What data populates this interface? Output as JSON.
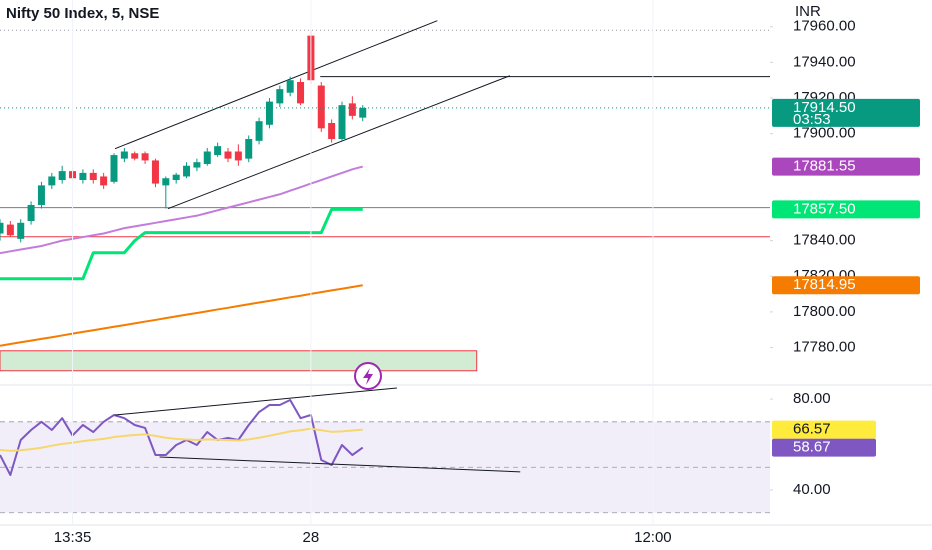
{
  "chart_data": [
    {
      "type": "candlestick",
      "title": "Nifty 50 Index, 5, NSE",
      "currency": "INR",
      "xlim": [
        0,
        74.3
      ],
      "ylim": [
        17759,
        17975
      ],
      "yticks": [
        {
          "value": 17780,
          "label": "17780.00"
        },
        {
          "value": 17800,
          "label": "17800.00"
        },
        {
          "value": 17820,
          "label": "17820.00"
        },
        {
          "value": 17840,
          "label": "17840.00"
        },
        {
          "value": 17900,
          "label": "17900.00"
        },
        {
          "value": 17920,
          "label": "17920.00"
        },
        {
          "value": 17940,
          "label": "17940.00"
        },
        {
          "value": 17960,
          "label": "17960.00"
        }
      ],
      "grid": false,
      "candles": {
        "open": [
          17844,
          17849,
          17841,
          17851,
          17860,
          17871,
          17874,
          17879,
          17874,
          17878,
          17876,
          17873,
          17886,
          17889,
          17889,
          17885,
          17871,
          17874,
          17876,
          17881,
          17883,
          17888,
          17890,
          17890,
          17886,
          17896,
          17905,
          17917,
          17923,
          17929,
          17955,
          17927,
          17906,
          17897,
          17917,
          17909
        ],
        "high": [
          17852,
          17851,
          17852,
          17862,
          17873,
          17878,
          17882,
          17881,
          17880,
          17880,
          17878,
          17889,
          17892,
          17890,
          17890,
          17886,
          17876,
          17878,
          17884,
          17886,
          17892,
          17895,
          17892,
          17894,
          17899,
          17909,
          17920,
          17927,
          17932,
          17931,
          17958,
          17929,
          17908,
          17918,
          17921,
          17916
        ],
        "low": [
          17840,
          17842,
          17839,
          17849,
          17858,
          17869,
          17872,
          17873,
          17872,
          17872,
          17869,
          17872,
          17884,
          17885,
          17883,
          17870,
          17858,
          17872,
          17875,
          17879,
          17882,
          17887,
          17884,
          17882,
          17884,
          17894,
          17903,
          17915,
          17921,
          17916,
          17928,
          17901,
          17895,
          17896,
          17908,
          17907
        ],
        "close": [
          17850,
          17843,
          17850,
          17860,
          17871,
          17876,
          17879,
          17875,
          17878,
          17874,
          17871,
          17888,
          17890,
          17886,
          17885,
          17872,
          17875,
          17877,
          17882,
          17884,
          17890,
          17893,
          17886,
          17885,
          17897,
          17907,
          17918,
          17925,
          17930,
          17917,
          17930,
          17903,
          17897,
          17916,
          17910,
          17914.5
        ],
        "up_color": "#089981",
        "down_color": "#f23645",
        "last_label": "17914.50",
        "countdown": "03:53"
      },
      "series": [
        {
          "color": "#c27ddb",
          "label_color": "#ab47bc",
          "last_label": "17881.55",
          "values": [
            17833,
            17834,
            17835,
            17836,
            17837,
            17838.5,
            17840,
            17841,
            17842,
            17843,
            17844,
            17845.5,
            17847,
            17848,
            17849,
            17850,
            17851,
            17852,
            17853,
            17854,
            17855.5,
            17857,
            17858.5,
            17860,
            17861.5,
            17863,
            17864.5,
            17866,
            17868,
            17870,
            17872,
            17874,
            17876,
            17878,
            17880,
            17881.55
          ]
        },
        {
          "color": "#00e676",
          "label_color": "#00e676",
          "last_label": "17857.50",
          "values": [
            17818.6,
            17818.6,
            17818.6,
            17818.6,
            17818.6,
            17818.6,
            17818.6,
            17818.6,
            17818.6,
            17833.2,
            17833.2,
            17833.2,
            17833.2,
            17840,
            17844.5,
            17844.5,
            17844.5,
            17844.5,
            17844.5,
            17844.5,
            17844.5,
            17844.5,
            17844.5,
            17844.5,
            17844.5,
            17844.5,
            17844.5,
            17844.5,
            17844.5,
            17844.5,
            17844.5,
            17844.5,
            17857.5,
            17857.5,
            17857.5,
            17857.5
          ]
        },
        {
          "color": "#f57c00",
          "label_color": "#f57c00",
          "last_label": "17814.95",
          "values": [
            17781,
            17782,
            17783,
            17783.9,
            17784.9,
            17785.8,
            17786.8,
            17787.8,
            17788.8,
            17789.7,
            17790.7,
            17791.7,
            17792.6,
            17793.6,
            17794.6,
            17795.5,
            17796.5,
            17797.5,
            17798.5,
            17799.4,
            17800.4,
            17801.4,
            17802.3,
            17803.3,
            17804.3,
            17805.3,
            17806.2,
            17807.2,
            17808.2,
            17809.1,
            17810.1,
            17811.1,
            17812.1,
            17813,
            17814,
            17814.95
          ]
        }
      ],
      "levels": [
        {
          "value": 17958,
          "color": "#9598a1",
          "style": "dotted"
        },
        {
          "value": 17932,
          "color": "#131722",
          "style": "solid",
          "x0": 30.9
        },
        {
          "value": 17858.5,
          "color": "#787b86",
          "style": "solid"
        },
        {
          "value": 17842.2,
          "color": "#f23645",
          "style": "solid"
        }
      ],
      "zone": {
        "x": [
          0,
          46
        ],
        "y": [
          17778.2,
          17767
        ],
        "color": "#4caf50",
        "border": "#f23645"
      },
      "trendlines": [
        {
          "x": [
            11.1,
            42.2
          ],
          "y": [
            17891.6,
            17963.4
          ]
        },
        {
          "x": [
            16.2,
            49.2
          ],
          "y": [
            17857.9,
            17932.5
          ]
        }
      ]
    },
    {
      "type": "line",
      "xlim": [
        0,
        74.3
      ],
      "xticks": [
        {
          "value": 7,
          "label": "13:35"
        },
        {
          "value": 30,
          "label": "28"
        },
        {
          "value": 63,
          "label": "12:00"
        }
      ],
      "ylim": [
        24.6,
        86.2
      ],
      "yticks": [
        {
          "value": 40,
          "label": "40.00"
        },
        {
          "value": 80,
          "label": "80.00"
        }
      ],
      "band": [
        30,
        70
      ],
      "levels": [
        70,
        50,
        30
      ],
      "series": [
        {
          "color": "#7e57c2",
          "label_color": "#7e57c2",
          "last_label": "58.67",
          "values": [
            55.4,
            46.6,
            62,
            66.4,
            70,
            66.4,
            71.6,
            64,
            68.6,
            65.5,
            70,
            73,
            71.6,
            68.6,
            67.3,
            55.4,
            55.4,
            59.8,
            62,
            59.8,
            65.5,
            62,
            62.9,
            62,
            68.6,
            74.3,
            77.4,
            77.4,
            79.6,
            71.6,
            73,
            53.2,
            51,
            59.8,
            55.4,
            58.67
          ]
        },
        {
          "color": "#f5d76e",
          "label_color": "#ffeb3b",
          "last_label": "66.57",
          "values": [
            57.6,
            57.2,
            57.5,
            58,
            58.6,
            59.5,
            60.3,
            60.8,
            61.5,
            62,
            62.5,
            63.3,
            63.8,
            64.2,
            64.5,
            63.8,
            63,
            62.5,
            62.2,
            62,
            62.3,
            62.1,
            62,
            61.8,
            62.3,
            63,
            63.9,
            64.8,
            65.8,
            66.3,
            67,
            66.3,
            65.6,
            65.8,
            66.2,
            66.57
          ]
        }
      ],
      "trendlines": [
        {
          "x": [
            11.1,
            38.3
          ],
          "y": [
            73,
            84.9
          ]
        },
        {
          "x": [
            15.4,
            50.2
          ],
          "y": [
            54.5,
            48
          ]
        }
      ]
    }
  ]
}
